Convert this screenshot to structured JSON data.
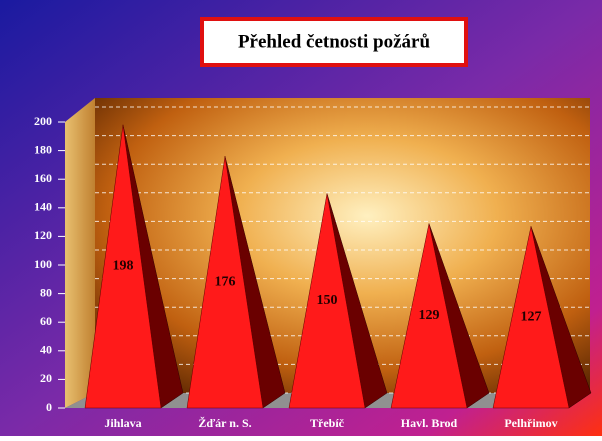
{
  "chart_data": {
    "type": "pyramid",
    "title": "Přehled četnosti požárů",
    "categories": [
      "Jihlava",
      "Žďár n. S.",
      "Třebíč",
      "Havl. Brod",
      "Pelhřimov"
    ],
    "values": [
      198,
      176,
      150,
      129,
      127
    ],
    "color": "#ff1a1a",
    "ylim": [
      0,
      200
    ],
    "yticks": [
      0,
      20,
      40,
      60,
      80,
      100,
      120,
      140,
      160,
      180,
      200
    ],
    "grid": true
  }
}
